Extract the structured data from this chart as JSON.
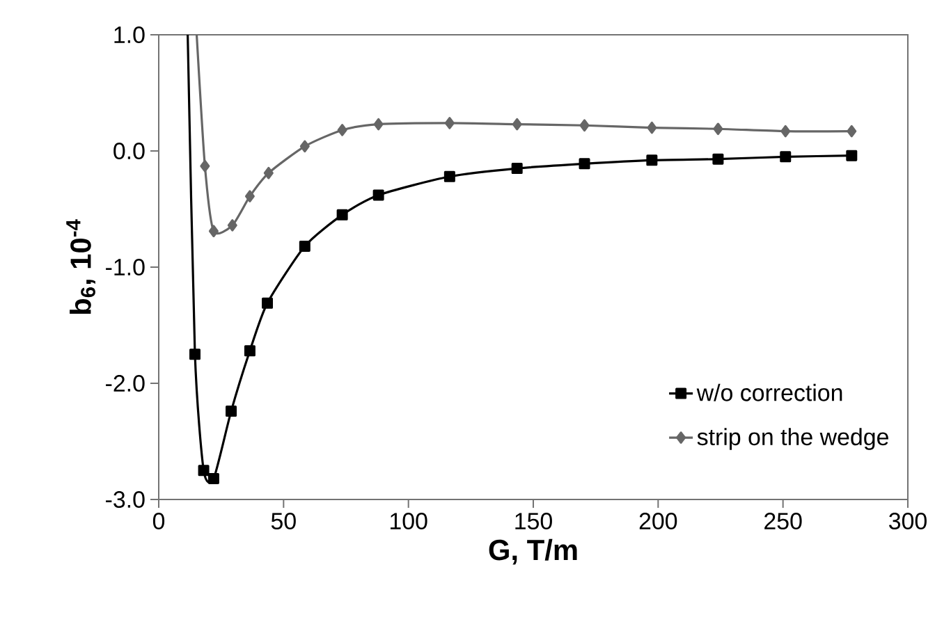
{
  "chart_data": {
    "type": "line",
    "xlabel": "G, T/m",
    "ylabel": "**b$_{6}$, 10$^{-4}$**",
    "xlim": [
      0,
      300
    ],
    "ylim": [
      -3.0,
      1.0
    ],
    "xticks": [
      0,
      50,
      100,
      150,
      200,
      250,
      300
    ],
    "yticks": [
      {
        "value": -3,
        "label": "-3.0"
      },
      {
        "value": -2,
        "label": "-2.0"
      },
      {
        "value": -1,
        "label": "-1.0"
      },
      {
        "value": 0,
        "label": "0.0"
      },
      {
        "value": 1,
        "label": "1.0"
      }
    ],
    "grid": false,
    "legend": "bottom right",
    "series": [
      {
        "name": "w/o correction",
        "color": "#000000",
        "marker": "square",
        "x": [
          11.6,
          14.5,
          18,
          22,
          29,
          36.5,
          43.5,
          58.5,
          73.5,
          88,
          116.5,
          143.5,
          170.5,
          197.5,
          224,
          251,
          277.5
        ],
        "values": [
          1.0,
          -1.75,
          -2.75,
          -2.82,
          -2.24,
          -1.72,
          -1.31,
          -0.82,
          -0.55,
          -0.38,
          -0.22,
          -0.15,
          -0.11,
          -0.08,
          -0.07,
          -0.05,
          -0.04
        ]
      },
      {
        "name": "strip on the wedge",
        "color": "#666666",
        "marker": "diamond",
        "x": [
          15.2,
          18.5,
          22,
          29.5,
          36.5,
          44,
          58.5,
          73.5,
          88,
          116.5,
          143.5,
          170.5,
          197.5,
          224,
          251,
          277.5
        ],
        "values": [
          1.0,
          -0.13,
          -0.69,
          -0.64,
          -0.39,
          -0.19,
          0.04,
          0.18,
          0.23,
          0.24,
          0.23,
          0.22,
          0.2,
          0.19,
          0.17,
          0.17
        ]
      }
    ]
  }
}
